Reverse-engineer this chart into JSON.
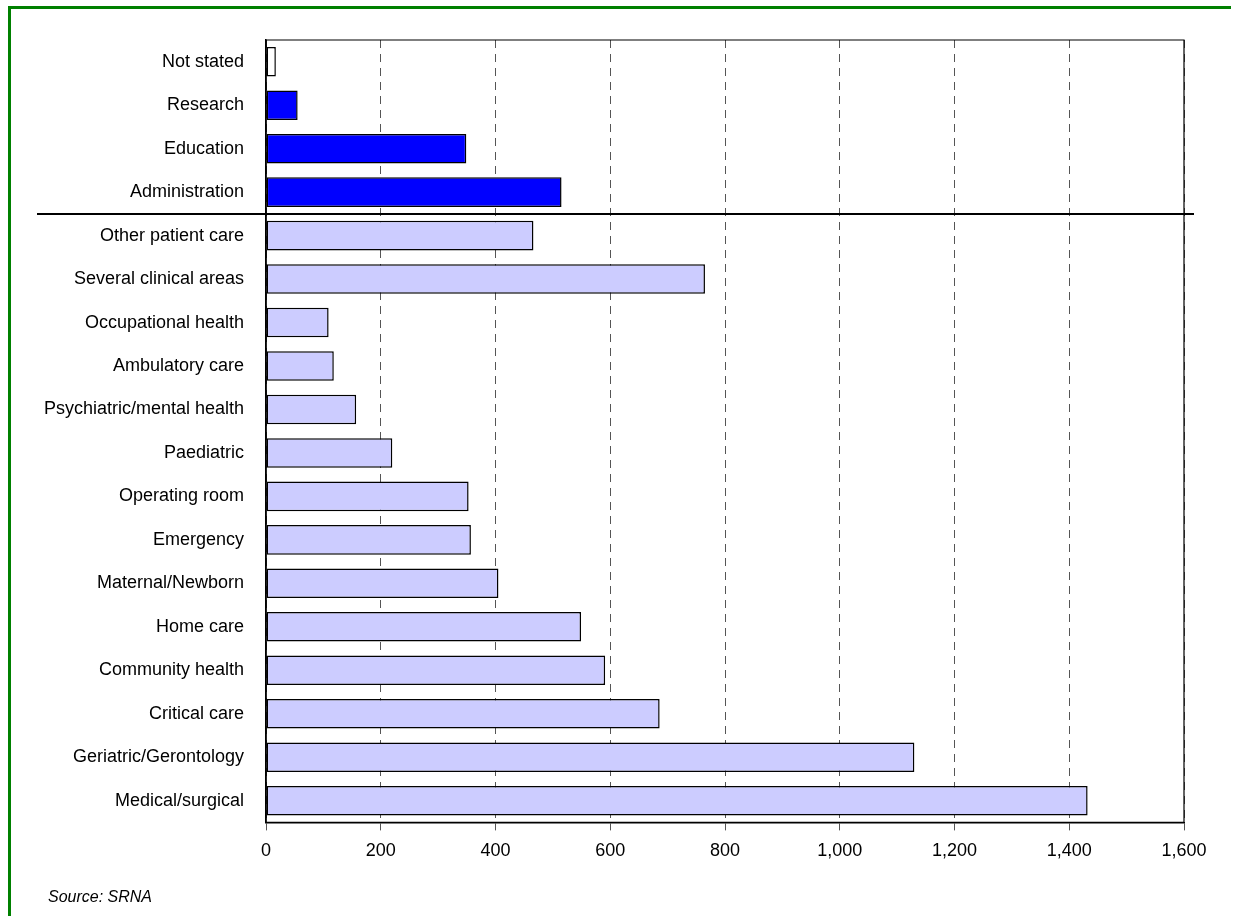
{
  "chart_data": {
    "type": "bar",
    "orientation": "horizontal",
    "categories": [
      "Not stated",
      "Research",
      "Education",
      "Administration",
      "Other patient care",
      "Several clinical areas",
      "Occupational health",
      "Ambulatory care",
      "Psychiatric/mental health",
      "Paediatric",
      "Operating room",
      "Emergency",
      "Maternal/Newborn",
      "Home care",
      "Community health",
      "Critical care",
      "Geriatric/Gerontology",
      "Medical/surgical"
    ],
    "values": [
      17,
      55,
      349,
      515,
      466,
      765,
      109,
      118,
      157,
      220,
      353,
      357,
      405,
      549,
      591,
      686,
      1130,
      1432
    ],
    "colors": [
      "#ffffff",
      "#0000ff",
      "#0000ff",
      "#0000ff",
      "#ccccff",
      "#ccccff",
      "#ccccff",
      "#ccccff",
      "#ccccff",
      "#ccccff",
      "#ccccff",
      "#ccccff",
      "#ccccff",
      "#ccccff",
      "#ccccff",
      "#ccccff",
      "#ccccff",
      "#ccccff"
    ],
    "xlim": [
      0,
      1600
    ],
    "xticks": [
      0,
      {
        "value": 200,
        "label": "200"
      },
      {
        "value": 400,
        "label": "400"
      },
      {
        "value": 600,
        "label": "600"
      },
      {
        "value": 800,
        "label": "800"
      },
      {
        "value": 1000,
        "label": "1,000"
      },
      {
        "value": 1200,
        "label": "1,200"
      },
      {
        "value": 1400,
        "label": "1,400"
      },
      {
        "value": 1600,
        "label": "1,600"
      }
    ],
    "grid": "x",
    "legend": false,
    "annotations": [
      "Source: SRNA"
    ]
  }
}
